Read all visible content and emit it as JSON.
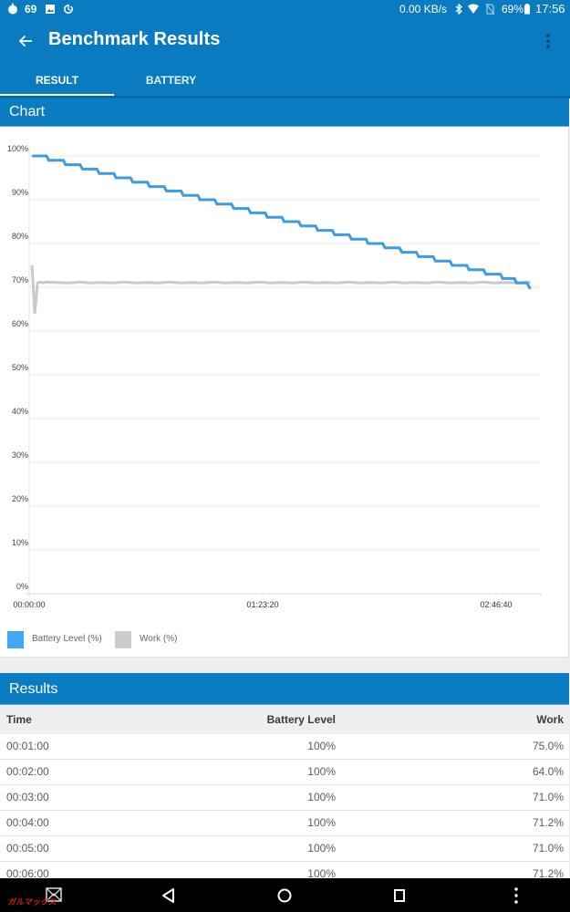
{
  "status_bar": {
    "left_number": "69",
    "net_speed": "0.00 KB/s",
    "battery_pct": "69%",
    "time": "17:56",
    "icons": [
      "notification-drop-icon",
      "image-icon",
      "sync-icon",
      "bluetooth-icon",
      "wifi-icon",
      "no-sim-icon",
      "battery-icon"
    ]
  },
  "app_bar": {
    "title": "Benchmark Results",
    "back_icon": "arrow-left-icon",
    "menu_icon": "more-vert-icon"
  },
  "tabs": [
    {
      "label": "RESULT",
      "active": true
    },
    {
      "label": "BATTERY",
      "active": false
    }
  ],
  "chart_section": {
    "header": "Chart"
  },
  "results_section": {
    "header": "Results",
    "columns": [
      "Time",
      "Battery Level",
      "Work"
    ],
    "rows": [
      {
        "time": "00:01:00",
        "battery": "100%",
        "work": "75.0%"
      },
      {
        "time": "00:02:00",
        "battery": "100%",
        "work": "64.0%"
      },
      {
        "time": "00:03:00",
        "battery": "100%",
        "work": "71.0%"
      },
      {
        "time": "00:04:00",
        "battery": "100%",
        "work": "71.2%"
      },
      {
        "time": "00:05:00",
        "battery": "100%",
        "work": "71.0%"
      },
      {
        "time": "00:06:00",
        "battery": "100%",
        "work": "71.2%"
      }
    ]
  },
  "nav_bar": {
    "watermark": "ガルマックス",
    "icons": [
      "mail-icon",
      "back-icon",
      "home-icon",
      "recents-icon",
      "more-vert-icon"
    ]
  },
  "colors": {
    "primary": "#0b7bc1",
    "battery_series": "#3d9be0",
    "work_series": "#c9c9c9",
    "legend_battery": "#42a5f5",
    "legend_work": "#cccccc"
  },
  "chart_data": {
    "type": "line",
    "title": "Chart",
    "xlabel": "",
    "ylabel": "",
    "x_unit": "minutes",
    "x_ticks": [
      "00:00:00",
      "01:23:20",
      "02:46:40"
    ],
    "x_tick_values": [
      0,
      83.333,
      166.667
    ],
    "xlim": [
      0,
      182.6
    ],
    "y_ticks": [
      "100%",
      "90%",
      "80%",
      "70%",
      "60%",
      "50%",
      "40%",
      "30%",
      "20%",
      "10%",
      "0%"
    ],
    "y_tick_values": [
      100,
      90,
      80,
      70,
      60,
      50,
      40,
      30,
      20,
      10,
      0
    ],
    "ylim": [
      0,
      100
    ],
    "grid": true,
    "legend_position": "bottom-left",
    "series": [
      {
        "name": "Battery Level (%)",
        "color": "#3d9be0",
        "step": true,
        "points": [
          [
            1,
            100
          ],
          [
            7,
            99
          ],
          [
            13,
            98
          ],
          [
            19,
            97
          ],
          [
            25,
            96
          ],
          [
            31,
            95
          ],
          [
            37,
            94
          ],
          [
            43,
            93
          ],
          [
            49,
            92
          ],
          [
            55,
            91
          ],
          [
            61,
            90
          ],
          [
            67,
            89
          ],
          [
            73,
            88
          ],
          [
            79,
            87
          ],
          [
            85,
            86
          ],
          [
            91,
            85
          ],
          [
            97,
            84
          ],
          [
            103,
            83
          ],
          [
            109,
            82
          ],
          [
            115,
            81
          ],
          [
            121,
            80
          ],
          [
            127,
            79
          ],
          [
            133,
            78
          ],
          [
            139,
            77
          ],
          [
            145,
            76
          ],
          [
            151,
            75
          ],
          [
            157,
            74
          ],
          [
            163,
            73
          ],
          [
            169,
            72
          ],
          [
            174,
            71
          ],
          [
            178.5,
            70
          ],
          [
            179,
            69.8
          ]
        ]
      },
      {
        "name": "Work (%)",
        "color": "#c9c9c9",
        "step": false,
        "points": [
          [
            1,
            75
          ],
          [
            2,
            64
          ],
          [
            3,
            71
          ],
          [
            4,
            71.2
          ],
          [
            5,
            71
          ],
          [
            6,
            71.2
          ],
          [
            10,
            71.1
          ],
          [
            14,
            71.0
          ],
          [
            18,
            71.2
          ],
          [
            22,
            71.0
          ],
          [
            26,
            71.1
          ],
          [
            30,
            71.0
          ],
          [
            34,
            71.2
          ],
          [
            38,
            71.0
          ],
          [
            42,
            71.1
          ],
          [
            46,
            71.0
          ],
          [
            50,
            71.2
          ],
          [
            54,
            71.0
          ],
          [
            58,
            71.1
          ],
          [
            62,
            71.0
          ],
          [
            66,
            71.2
          ],
          [
            70,
            71.0
          ],
          [
            74,
            71.1
          ],
          [
            78,
            71.0
          ],
          [
            82,
            71.2
          ],
          [
            86,
            71.0
          ],
          [
            90,
            71.1
          ],
          [
            94,
            71.0
          ],
          [
            98,
            71.2
          ],
          [
            102,
            71.0
          ],
          [
            106,
            71.1
          ],
          [
            110,
            71.0
          ],
          [
            114,
            71.2
          ],
          [
            118,
            71.0
          ],
          [
            122,
            71.1
          ],
          [
            126,
            71.0
          ],
          [
            130,
            71.2
          ],
          [
            134,
            71.0
          ],
          [
            138,
            71.1
          ],
          [
            142,
            71.0
          ],
          [
            146,
            71.2
          ],
          [
            150,
            71.0
          ],
          [
            154,
            71.1
          ],
          [
            158,
            71.0
          ],
          [
            162,
            71.2
          ],
          [
            166,
            71.0
          ],
          [
            170,
            71.1
          ],
          [
            174,
            71.0
          ],
          [
            178,
            71.2
          ],
          [
            179,
            71.0
          ]
        ]
      }
    ]
  }
}
